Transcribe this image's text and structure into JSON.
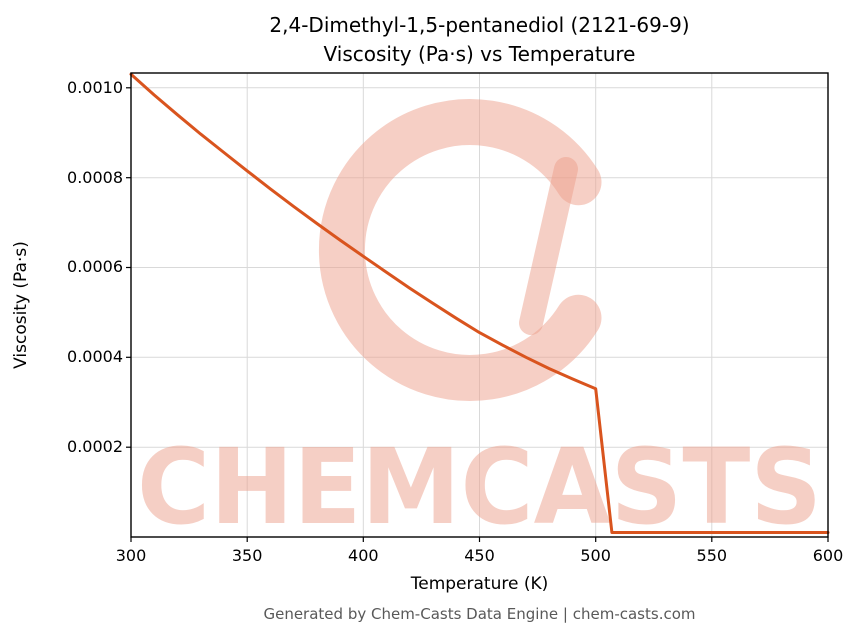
{
  "title": {
    "line1": "2,4-Dimethyl-1,5-pentanediol (2121-69-9)",
    "line2": "Viscosity (Pa·s) vs Temperature"
  },
  "footer": "Generated by Chem-Casts Data Engine | chem-casts.com",
  "watermark": {
    "text": "CHEMCASTS",
    "color": "#eda08c",
    "opacity": 0.5
  },
  "chart_data": {
    "type": "line",
    "title": "2,4-Dimethyl-1,5-pentanediol (2121-69-9) Viscosity (Pa·s) vs Temperature",
    "xlabel": "Temperature (K)",
    "ylabel": "Viscosity (Pa·s)",
    "xlim": [
      300,
      600
    ],
    "ylim": [
      0,
      0.001033
    ],
    "xticks": [
      300,
      350,
      400,
      450,
      500,
      550,
      600
    ],
    "xtick_labels": [
      "300",
      "350",
      "400",
      "450",
      "500",
      "550",
      "600"
    ],
    "yticks": [
      0.0002,
      0.0004,
      0.0006,
      0.0008,
      0.001
    ],
    "ytick_labels": [
      "0.0002",
      "0.0004",
      "0.0006",
      "0.0008",
      "0.0010"
    ],
    "grid": true,
    "grid_color": "#d9d9d9",
    "legend_position": "none",
    "line_color": "#d9541e",
    "series": [
      {
        "name": "Viscosity (Pa·s)",
        "points": [
          [
            300,
            0.00103
          ],
          [
            310,
            0.000984
          ],
          [
            320,
            0.00094
          ],
          [
            330,
            0.000897
          ],
          [
            340,
            0.000856
          ],
          [
            350,
            0.000815
          ],
          [
            360,
            0.000775
          ],
          [
            370,
            0.000736
          ],
          [
            380,
            0.000698
          ],
          [
            390,
            0.000661
          ],
          [
            400,
            0.000625
          ],
          [
            410,
            0.000589
          ],
          [
            420,
            0.000554
          ],
          [
            430,
            0.00052
          ],
          [
            440,
            0.000487
          ],
          [
            450,
            0.000455
          ],
          [
            460,
            0.000427
          ],
          [
            470,
            0.0004
          ],
          [
            480,
            0.000375
          ],
          [
            490,
            0.000352
          ],
          [
            500,
            0.00033
          ],
          [
            507,
            1e-05
          ],
          [
            520,
            1e-05
          ],
          [
            550,
            1e-05
          ],
          [
            600,
            1e-05
          ]
        ]
      }
    ]
  }
}
